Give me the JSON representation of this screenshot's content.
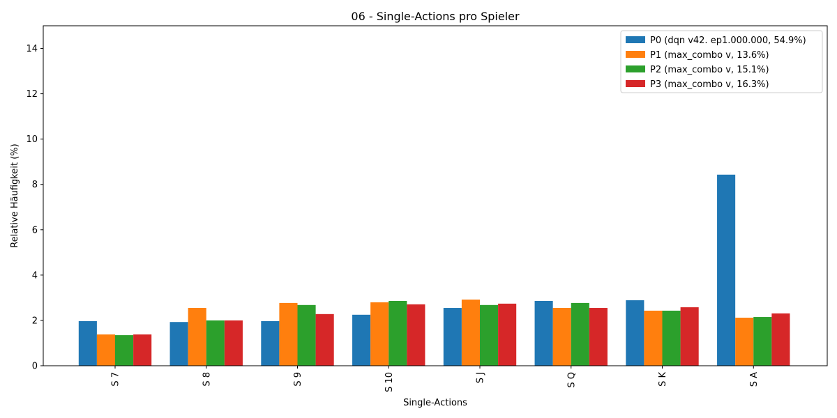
{
  "chart_data": {
    "type": "bar",
    "title": "06 - Single-Actions pro Spieler",
    "xlabel": "Single-Actions",
    "ylabel": "Relative Häufigkeit (%)",
    "ylim": [
      0,
      15
    ],
    "yticks": [
      0,
      2,
      4,
      6,
      8,
      10,
      12,
      14
    ],
    "grid": false,
    "legend_position": "top-right",
    "categories": [
      "S 7",
      "S 8",
      "S 9",
      "S 10",
      "S J",
      "S Q",
      "S K",
      "S A"
    ],
    "series": [
      {
        "name": "P0 (dqn v42. ep1.000.000, 54.9%)",
        "color": "#1f77b4",
        "values": [
          1.97,
          1.93,
          1.97,
          2.25,
          2.55,
          2.86,
          2.89,
          8.43
        ]
      },
      {
        "name": "P1 (max_combo v, 13.6%)",
        "color": "#ff7f0e",
        "values": [
          1.38,
          2.55,
          2.77,
          2.8,
          2.92,
          2.55,
          2.43,
          2.12
        ]
      },
      {
        "name": "P2 (max_combo v, 15.1%)",
        "color": "#2ca02c",
        "values": [
          1.35,
          2.0,
          2.68,
          2.86,
          2.68,
          2.77,
          2.43,
          2.15
        ]
      },
      {
        "name": "P3 (max_combo v, 16.3%)",
        "color": "#d62728",
        "values": [
          1.38,
          2.0,
          2.28,
          2.71,
          2.74,
          2.55,
          2.58,
          2.31
        ]
      }
    ]
  }
}
